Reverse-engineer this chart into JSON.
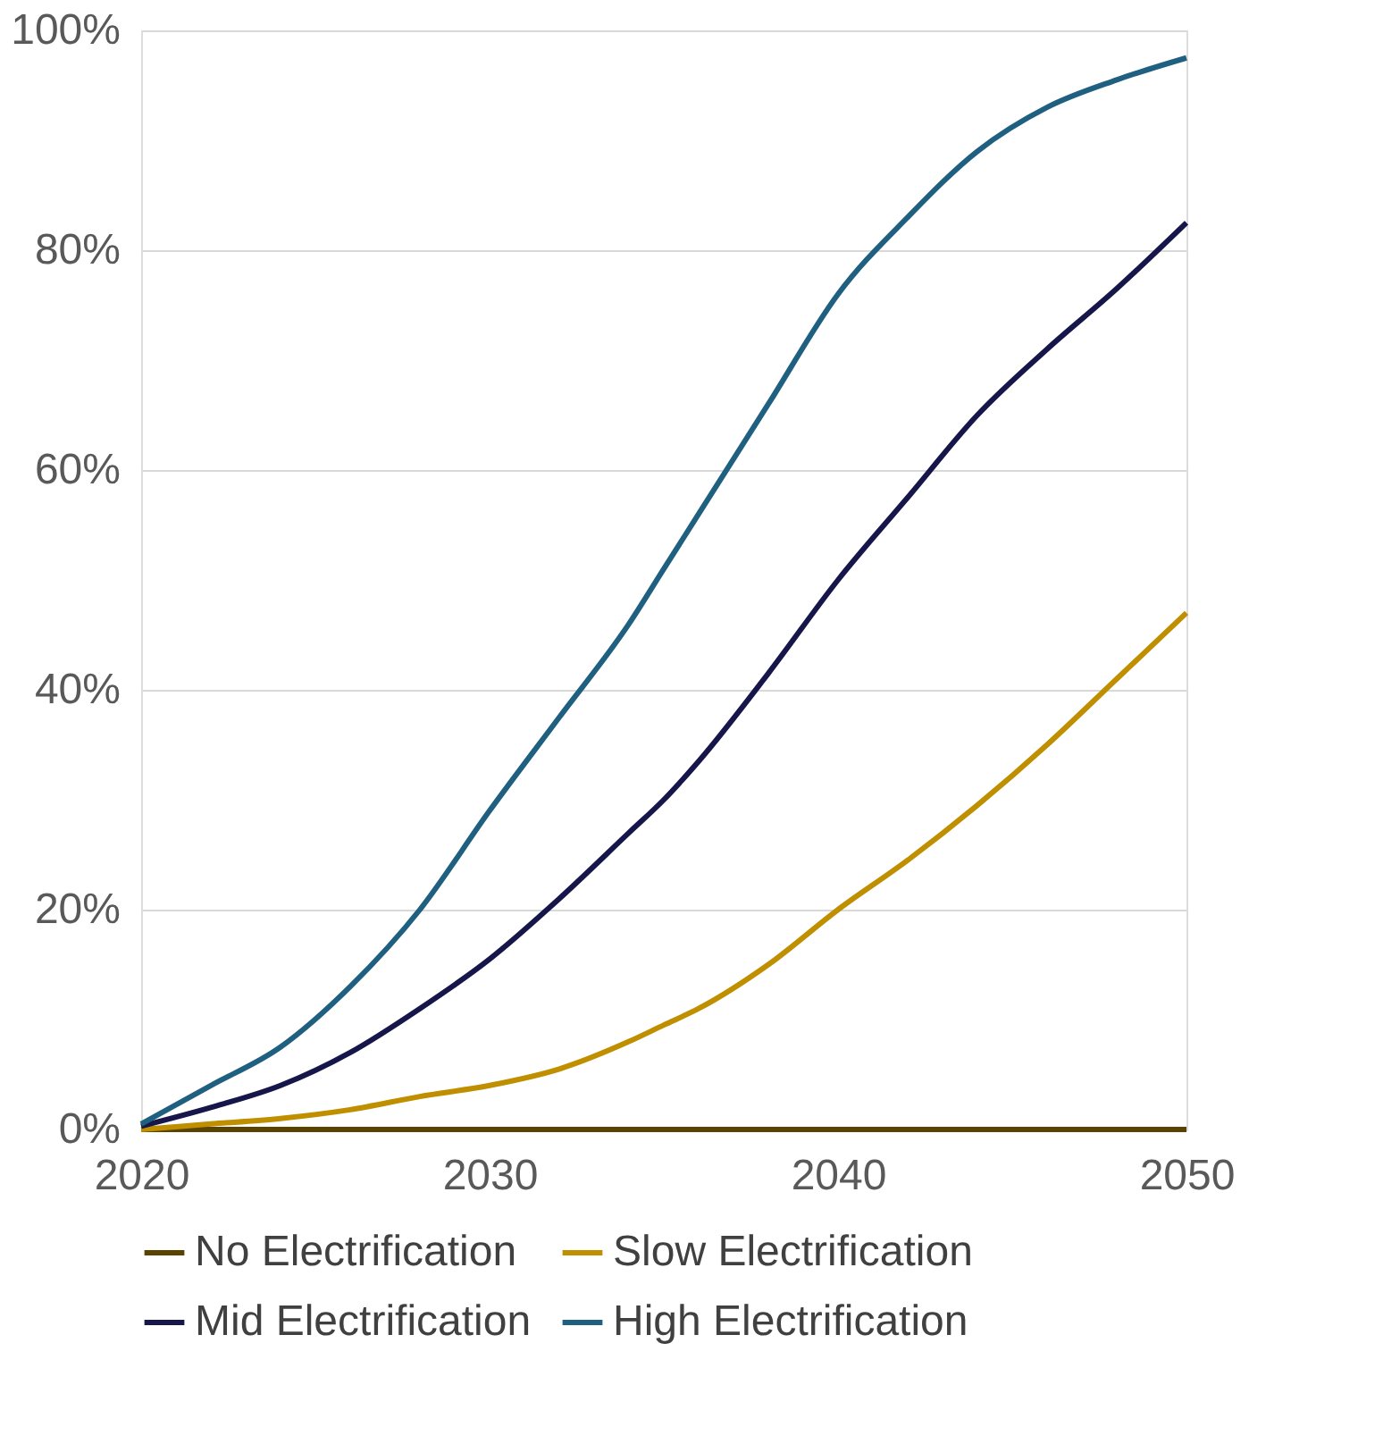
{
  "chart_data": {
    "type": "line",
    "x": [
      2020,
      2022,
      2024,
      2026,
      2028,
      2030,
      2032,
      2034,
      2035,
      2036,
      2038,
      2040,
      2042,
      2044,
      2046,
      2048,
      2050
    ],
    "series": [
      {
        "name": "No Electrification",
        "color": "#5a4200",
        "values": [
          0,
          0,
          0,
          0,
          0,
          0,
          0,
          0,
          0,
          0,
          0,
          0,
          0,
          0,
          0,
          0,
          0
        ]
      },
      {
        "name": "Slow Electrification",
        "color": "#bf8f00",
        "values": [
          0,
          0.5,
          1,
          1.8,
          3,
          4,
          5.5,
          8,
          9.5,
          11,
          15,
          20,
          24.5,
          29.5,
          35,
          41,
          47
        ]
      },
      {
        "name": "Mid Electrification",
        "color": "#16164a",
        "values": [
          0.3,
          2,
          4,
          7,
          11,
          15.5,
          21,
          27,
          30,
          33.5,
          41.5,
          50,
          57.5,
          65,
          71,
          76.5,
          82.5
        ]
      },
      {
        "name": "High Electrification",
        "color": "#1f6080",
        "values": [
          0.5,
          4,
          7.5,
          13,
          20,
          29,
          37.5,
          46,
          51,
          56,
          66,
          76,
          83,
          89,
          93,
          95.5,
          97.5
        ]
      }
    ],
    "xlim": [
      2020,
      2050
    ],
    "xticks": [
      2020,
      2030,
      2040,
      2050
    ],
    "ylim": [
      0,
      100
    ],
    "yticks": [
      {
        "value": 0,
        "label": "0%"
      },
      {
        "value": 20,
        "label": "20%"
      },
      {
        "value": 40,
        "label": "40%"
      },
      {
        "value": 60,
        "label": "60%"
      },
      {
        "value": 80,
        "label": "80%"
      },
      {
        "value": 100,
        "label": "100%"
      }
    ],
    "grid": "y",
    "legend": "bottom",
    "marker": "none",
    "line_style": "solid"
  }
}
